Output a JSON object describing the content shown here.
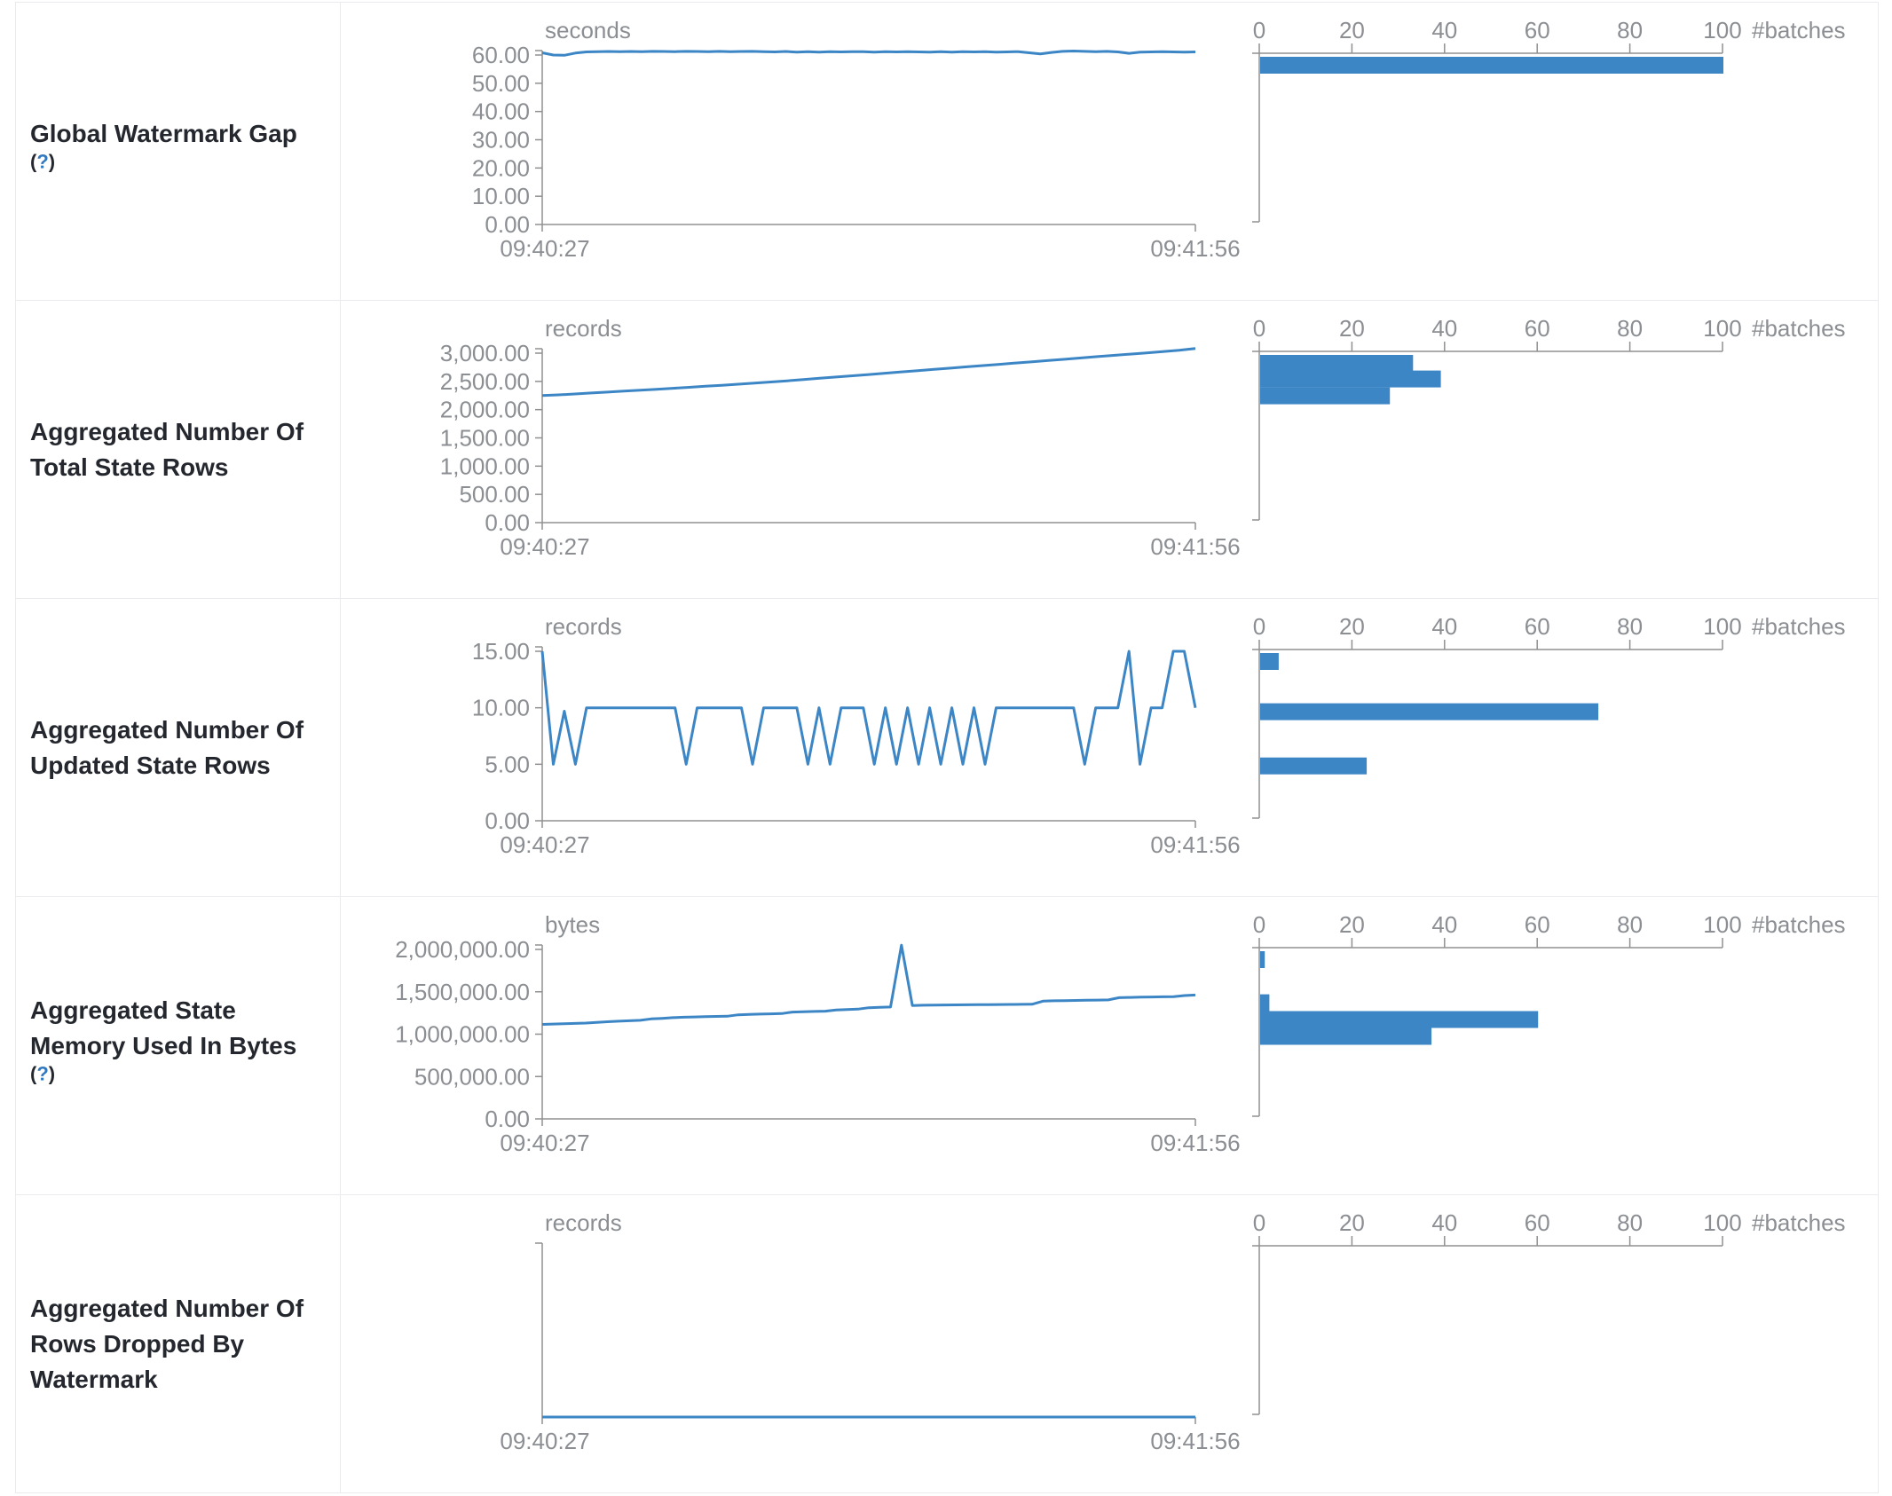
{
  "colors": {
    "accent": "#3d86c6",
    "help_link": "#3178be",
    "axis_gray": "#909090",
    "muted_text": "#8b8e92",
    "label_text": "#24282e",
    "border": "#e9ebee"
  },
  "x_axis": {
    "start": "09:40:27",
    "end": "09:41:56"
  },
  "histogram_axis": {
    "ticks": [
      "0",
      "20",
      "40",
      "60",
      "80",
      "100"
    ],
    "max": 100,
    "label": "#batches"
  },
  "help_marker": {
    "open": "(",
    "q": "?",
    "close": ")"
  },
  "rows": [
    {
      "title_lines": [
        "Global Watermark Gap"
      ],
      "help_on_own_line": true,
      "timeline": {
        "unit": "seconds",
        "top_tick_value": 60,
        "ticks": [
          {
            "v": 60,
            "label": "60.00"
          },
          {
            "v": 50,
            "label": "50.00"
          },
          {
            "v": 40,
            "label": "40.00"
          },
          {
            "v": 30,
            "label": "30.00"
          },
          {
            "v": 20,
            "label": "20.00"
          },
          {
            "v": 10,
            "label": "10.00"
          },
          {
            "v": 0,
            "label": "0.00"
          }
        ],
        "chart_data": {
          "type": "line",
          "xlabel_start": "09:40:27",
          "xlabel_end": "09:41:56",
          "ylim": [
            0,
            61.5
          ],
          "values": [
            60.8,
            60.0,
            59.9,
            60.7,
            61.1,
            61.2,
            61.25,
            61.2,
            61.25,
            61.2,
            61.3,
            61.25,
            61.2,
            61.3,
            61.25,
            61.2,
            61.3,
            61.2,
            61.25,
            61.3,
            61.2,
            61.1,
            61.25,
            61.0,
            61.2,
            61.05,
            61.2,
            61.1,
            61.2,
            61.15,
            61.0,
            61.2,
            61.1,
            61.2,
            61.1,
            61.0,
            61.15,
            61.05,
            61.2,
            61.1,
            61.15,
            61.0,
            61.1,
            61.2,
            60.8,
            60.4,
            60.9,
            61.3,
            61.4,
            61.3,
            61.2,
            61.3,
            61.1,
            60.6,
            61.0,
            61.1,
            61.15,
            61.1,
            61.05,
            61.1
          ]
        }
      },
      "histogram": {
        "type": "bar",
        "bins": [
          {
            "bin_upper": 61.5,
            "count": 100
          }
        ]
      }
    },
    {
      "title_lines": [
        "Aggregated Number Of",
        "Total State Rows"
      ],
      "help_on_own_line": false,
      "timeline": {
        "unit": "records",
        "top_tick_value": 3000,
        "ticks": [
          {
            "v": 3000,
            "label": "3,000.00"
          },
          {
            "v": 2500,
            "label": "2,500.00"
          },
          {
            "v": 2000,
            "label": "2,000.00"
          },
          {
            "v": 1500,
            "label": "1,500.00"
          },
          {
            "v": 1000,
            "label": "1,000.00"
          },
          {
            "v": 500,
            "label": "500.00"
          },
          {
            "v": 0,
            "label": "0.00"
          }
        ],
        "chart_data": {
          "type": "line",
          "xlabel_start": "09:40:27",
          "xlabel_end": "09:41:56",
          "ylim": [
            0,
            3100
          ],
          "values": [
            2250,
            2262,
            2278,
            2295,
            2310,
            2328,
            2345,
            2360,
            2378,
            2395,
            2415,
            2432,
            2450,
            2470,
            2490,
            2510,
            2532,
            2555,
            2578,
            2600,
            2622,
            2645,
            2668,
            2690,
            2712,
            2735,
            2758,
            2780,
            2802,
            2825,
            2848,
            2870,
            2892,
            2915,
            2938,
            2960,
            2982,
            3005,
            3028,
            3050,
            3082
          ]
        }
      },
      "histogram": {
        "type": "bar",
        "bins": [
          {
            "bin_upper": 2990,
            "count": 33
          },
          {
            "bin_upper": 2692,
            "count": 39
          },
          {
            "bin_upper": 2394,
            "count": 28
          }
        ]
      }
    },
    {
      "title_lines": [
        "Aggregated Number Of",
        "Updated State Rows"
      ],
      "help_on_own_line": false,
      "timeline": {
        "unit": "records",
        "top_tick_value": 15,
        "ticks": [
          {
            "v": 15,
            "label": "15.00"
          },
          {
            "v": 10,
            "label": "10.00"
          },
          {
            "v": 5,
            "label": "5.00"
          },
          {
            "v": 0,
            "label": "0.00"
          }
        ],
        "chart_data": {
          "type": "line",
          "xlabel_start": "09:40:27",
          "xlabel_end": "09:41:56",
          "ylim": [
            0,
            15
          ],
          "values": [
            15,
            5,
            9.7,
            5,
            10,
            10,
            10,
            10,
            10,
            10,
            10,
            10,
            10,
            5,
            10,
            10,
            10,
            10,
            10,
            5,
            10,
            10,
            10,
            10,
            5,
            10,
            5,
            10,
            10,
            10,
            5,
            10,
            5,
            10,
            5,
            10,
            5,
            10,
            5,
            10,
            5,
            10,
            10,
            10,
            10,
            10,
            10,
            10,
            10,
            5,
            10,
            10,
            10,
            15,
            5,
            10,
            10,
            15,
            15,
            10
          ]
        }
      },
      "histogram": {
        "type": "bar",
        "bins": [
          {
            "bin_upper": 15.3,
            "count": 4
          },
          {
            "bin_upper": 10.4,
            "count": 73
          },
          {
            "bin_upper": 5.6,
            "count": 23
          }
        ]
      }
    },
    {
      "title_lines": [
        "Aggregated State",
        "Memory Used In Bytes"
      ],
      "help_on_own_line": true,
      "timeline": {
        "unit": "bytes",
        "top_tick_value": 2000000,
        "ticks": [
          {
            "v": 2000000,
            "label": "2,000,000.00"
          },
          {
            "v": 1500000,
            "label": "1,500,000.00"
          },
          {
            "v": 1000000,
            "label": "1,000,000.00"
          },
          {
            "v": 500000,
            "label": "500,000.00"
          },
          {
            "v": 0,
            "label": "0.00"
          }
        ],
        "chart_data": {
          "type": "line",
          "xlabel_start": "09:40:27",
          "xlabel_end": "09:41:56",
          "ylim": [
            0,
            2050000
          ],
          "values": [
            1115000,
            1119000,
            1123000,
            1127000,
            1131000,
            1139000,
            1147000,
            1153000,
            1158000,
            1163000,
            1180000,
            1186000,
            1195000,
            1200000,
            1203000,
            1206000,
            1209000,
            1212000,
            1228000,
            1233000,
            1237000,
            1240000,
            1243000,
            1261000,
            1265000,
            1268000,
            1271000,
            1286000,
            1291000,
            1295000,
            1312000,
            1316000,
            1320000,
            2050000,
            1338000,
            1341000,
            1343000,
            1345000,
            1346000,
            1347000,
            1348000,
            1349000,
            1350000,
            1351000,
            1352000,
            1353000,
            1390000,
            1394000,
            1396000,
            1398000,
            1400000,
            1402000,
            1404000,
            1430000,
            1434000,
            1437000,
            1439000,
            1441000,
            1443000,
            1455000,
            1462000
          ]
        }
      },
      "histogram": {
        "type": "bar",
        "bins": [
          {
            "bin_upper": 2050000,
            "count": 1
          },
          {
            "bin_upper": 1470000,
            "count": 2
          },
          {
            "bin_upper": 1272000,
            "count": 60
          },
          {
            "bin_upper": 1073000,
            "count": 37
          }
        ]
      }
    },
    {
      "title_lines": [
        "Aggregated Number Of",
        "Rows Dropped By",
        "Watermark"
      ],
      "help_on_own_line": false,
      "timeline": {
        "unit": "records",
        "top_tick_value": null,
        "ticks": [],
        "chart_data": {
          "type": "line",
          "xlabel_start": "09:40:27",
          "xlabel_end": "09:41:56",
          "ylim": [
            0,
            0
          ],
          "values": [
            0,
            0,
            0,
            0,
            0,
            0,
            0,
            0,
            0,
            0,
            0,
            0,
            0,
            0,
            0,
            0,
            0,
            0,
            0,
            0,
            0,
            0,
            0,
            0,
            0,
            0,
            0,
            0,
            0,
            0,
            0,
            0,
            0,
            0,
            0,
            0,
            0,
            0,
            0,
            0
          ]
        }
      },
      "histogram": {
        "type": "bar",
        "bins": []
      }
    }
  ]
}
